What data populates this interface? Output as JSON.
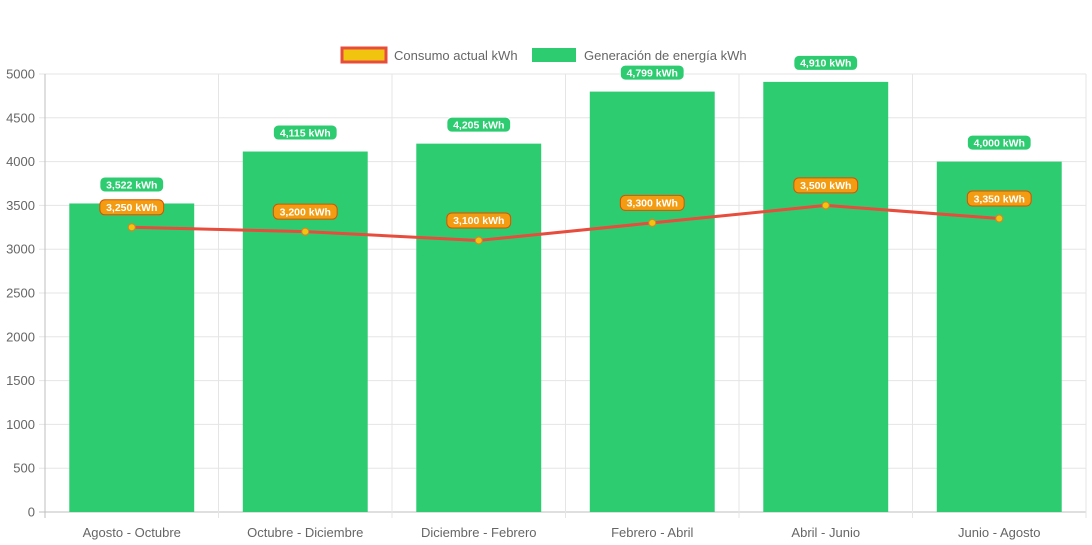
{
  "chart_data": {
    "type": "bar",
    "categories": [
      "Agosto - Octubre",
      "Octubre - Diciembre",
      "Diciembre - Febrero",
      "Febrero - Abril",
      "Abril - Junio",
      "Junio - Agosto"
    ],
    "series": [
      {
        "name": "Generación de energía kWh",
        "type": "bar",
        "color": "#2ecc71",
        "values": [
          3522,
          4115,
          4205,
          4799,
          4910,
          4000
        ],
        "labels": [
          "3,522 kWh",
          "4,115 kWh",
          "4,205 kWh",
          "4,799 kWh",
          "4,910 kWh",
          "4,000 kWh"
        ]
      },
      {
        "name": "Consumo actual kWh",
        "type": "line",
        "color": "#e74c3c",
        "point_color": "#f1c40f",
        "label_color": "#f39c12",
        "values": [
          3250,
          3200,
          3100,
          3300,
          3500,
          3350
        ],
        "labels": [
          "3,250 kWh",
          "3,200 kWh",
          "3,100 kWh",
          "3,300 kWh",
          "3,500 kWh",
          "3,350 kWh"
        ]
      }
    ],
    "legend_order": [
      "Consumo actual kWh",
      "Generación de energía kWh"
    ],
    "ylim": [
      0,
      5000
    ],
    "yticks": [
      "0",
      "500",
      "1000",
      "1500",
      "2000",
      "2500",
      "3000",
      "3500",
      "4000",
      "4500",
      "5000"
    ],
    "legend_position": "top",
    "grid": true,
    "title": "",
    "xlabel": "",
    "ylabel": ""
  }
}
